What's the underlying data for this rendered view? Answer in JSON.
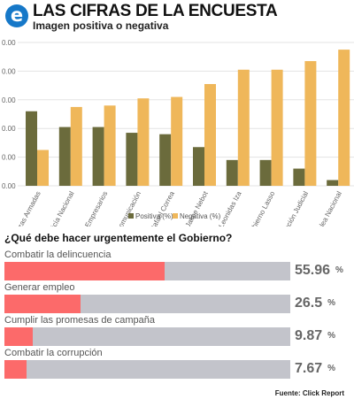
{
  "header": {
    "logo_letter": "e",
    "title": "LAS CIFRAS DE LA ENCUESTA",
    "subtitle": "Imagen positiva o negativa"
  },
  "colors": {
    "positive": "#6b6b3c",
    "negative": "#efb75a",
    "bar_fill": "#fc6a6a",
    "bar_track": "#c3c4cb",
    "logo": "#1678c8"
  },
  "chart_data": [
    {
      "type": "bar",
      "categories": [
        "Fuerzas Armadas",
        "Policía Nacional",
        "Empresarios",
        "Comunicación",
        "Rafael Correa",
        "Jaime Nebot",
        "Leonidas Iza",
        "Gobierno Lasso",
        "Función Judicial",
        "Asamblea Nacional"
      ],
      "series": [
        {
          "name": "Positiva (%)",
          "values": [
            52,
            41,
            41,
            37,
            36,
            27,
            18,
            18,
            12,
            4
          ]
        },
        {
          "name": "Negativa (%)",
          "values": [
            25,
            55,
            56,
            61,
            62,
            71,
            81,
            81,
            87,
            95
          ]
        }
      ],
      "ytick_labels": [
        "0.00",
        "0.00",
        "0.00",
        "0.00",
        "0.00",
        "0.00",
        "0.00"
      ],
      "ylim": [
        0,
        100
      ],
      "legend": "bottom-right",
      "grid": true
    },
    {
      "type": "bar",
      "orientation": "horizontal",
      "title": "¿Qué debe hacer urgentemente el Gobierno?",
      "categories": [
        "Combatir la delincuencia",
        "Generar empleo",
        "Cumplir las promesas de campaña",
        "Combatir la corrupción"
      ],
      "values": [
        55.96,
        26.5,
        9.87,
        7.67
      ],
      "value_labels": [
        "55.96",
        "26.5",
        "9.87",
        "7.67"
      ],
      "unit": "%",
      "xlim": [
        0,
        100
      ]
    }
  ],
  "source": "Fuente: Click Report"
}
